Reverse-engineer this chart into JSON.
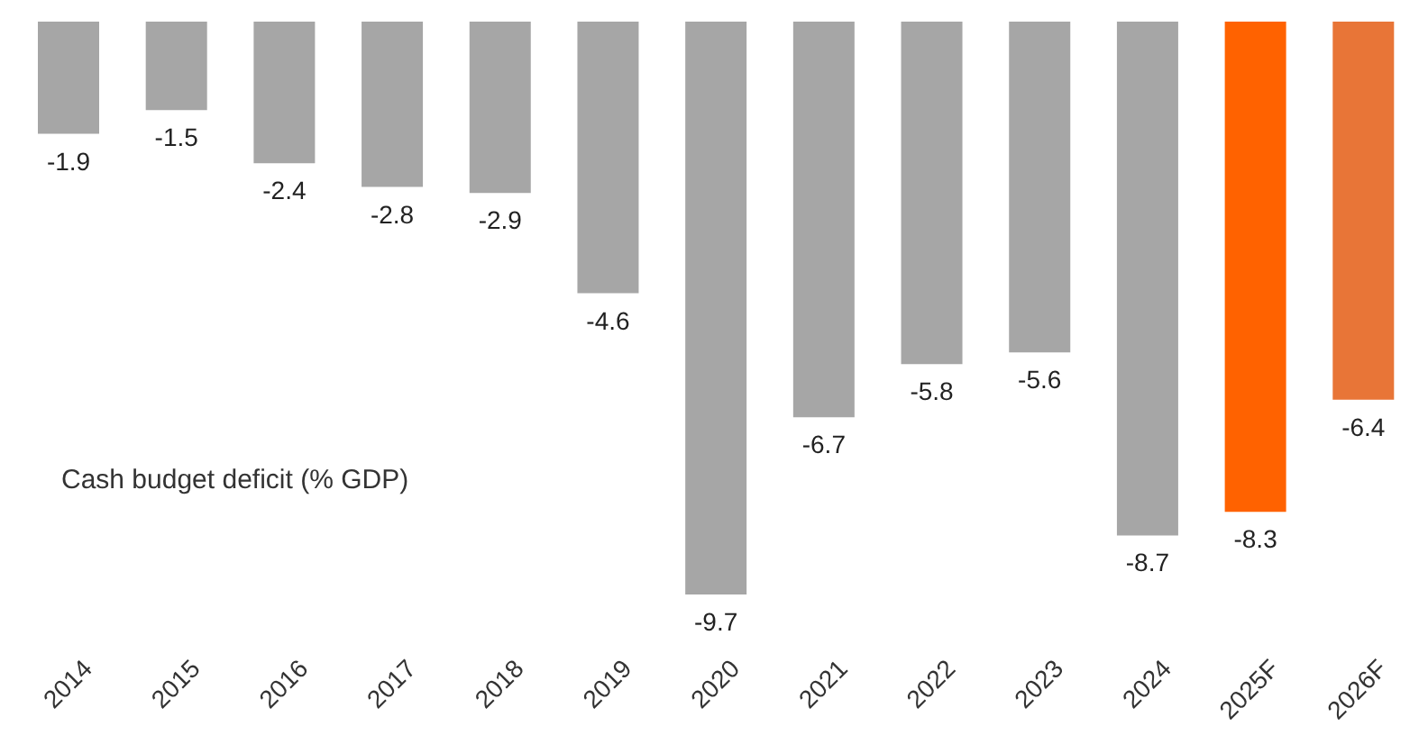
{
  "chart_data": {
    "type": "bar",
    "categories": [
      "2014",
      "2015",
      "2016",
      "2017",
      "2018",
      "2019",
      "2020",
      "2021",
      "2022",
      "2023",
      "2024",
      "2025F",
      "2026F"
    ],
    "values": [
      -1.9,
      -1.5,
      -2.4,
      -2.8,
      -2.9,
      -4.6,
      -9.7,
      -6.7,
      -5.8,
      -5.6,
      -8.7,
      -8.3,
      -6.4
    ],
    "colors": [
      "#a6a6a6",
      "#a6a6a6",
      "#a6a6a6",
      "#a6a6a6",
      "#a6a6a6",
      "#a6a6a6",
      "#a6a6a6",
      "#a6a6a6",
      "#a6a6a6",
      "#a6a6a6",
      "#a6a6a6",
      "#ff6200",
      "#e87537"
    ],
    "tick_labels": "x",
    "data_labels": true,
    "grid": false,
    "annotations": [
      "Cash budget deficit (% GDP)"
    ]
  }
}
